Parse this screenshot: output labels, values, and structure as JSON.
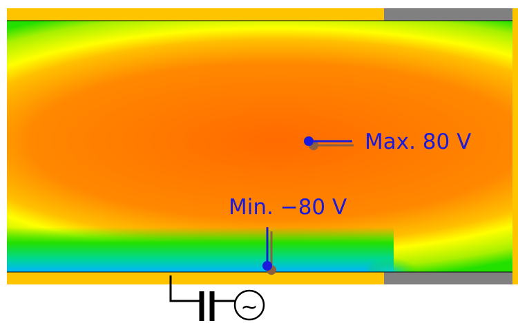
{
  "labels": {
    "max": "Max. 80 V",
    "min": "Min. −80 V"
  },
  "colors": {
    "electrode": "#ffc400",
    "insulator": "#808080",
    "callout": "#1a1adc",
    "callout_shadow": "#8a6040",
    "field_max": "#ff6600",
    "field_mid": "#ffff00",
    "field_low": "#22e000",
    "field_min": "#00b4ff",
    "circuit": "#000000"
  },
  "icons": {
    "capacitor": "capacitor-icon",
    "ac_source": "ac-source-icon",
    "ac_symbol": "~"
  }
}
